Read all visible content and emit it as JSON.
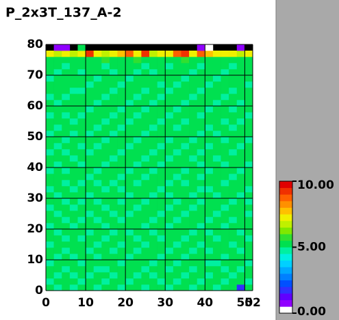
{
  "chart_data": {
    "type": "heatmap",
    "title": "P_2x3T_137_A-2",
    "xlim": [
      0,
      52
    ],
    "ylim": [
      0,
      80
    ],
    "xticks": [
      0,
      10,
      20,
      30,
      40,
      50,
      52
    ],
    "yticks": [
      0,
      10,
      20,
      30,
      40,
      50,
      60,
      70,
      80
    ],
    "grid": true,
    "zlim": [
      0,
      10
    ],
    "colorbar_ticks": [
      {
        "value": 0,
        "label": "0.00"
      },
      {
        "value": 5,
        "label": "5.00"
      },
      {
        "value": 10,
        "label": "10.00"
      }
    ],
    "colormap": [
      "#ffffff",
      "#9000ff",
      "#6000ff",
      "#3030ff",
      "#0050ff",
      "#0080ff",
      "#00a8ff",
      "#00d0ff",
      "#00f0e0",
      "#00f0a0",
      "#00e050",
      "#30e030",
      "#80e800",
      "#c0f000",
      "#f0f000",
      "#ffc000",
      "#ff9000",
      "#ff6000",
      "#f03000",
      "#e00000"
    ],
    "z": [
      [
        5.1,
        4.9,
        5.2,
        4.8,
        5.0,
        5.3,
        4.7,
        5.1,
        5.0,
        4.9,
        5.2,
        5.4,
        4.8,
        5.0,
        5.1,
        4.9,
        5.3,
        5.0,
        4.8,
        5.2,
        5.1,
        4.9,
        5.0,
        5.2,
        1.6,
        5.1
      ],
      [
        4.9,
        5.2,
        5.0,
        5.1,
        4.7,
        5.0,
        5.2,
        4.9,
        5.3,
        5.0,
        4.8,
        5.1,
        5.0,
        5.2,
        4.9,
        5.1,
        4.8,
        5.0,
        5.2,
        4.9,
        5.0,
        5.3,
        4.8,
        5.1,
        5.0,
        4.9
      ],
      [
        5.2,
        4.8,
        5.1,
        4.9,
        5.3,
        4.8,
        5.0,
        5.1,
        4.9,
        5.2,
        5.0,
        4.7,
        5.1,
        4.9,
        5.0,
        5.3,
        5.0,
        4.9,
        5.1,
        5.0,
        4.8,
        5.0,
        5.2,
        4.9,
        5.1,
        5.0
      ],
      [
        5.0,
        5.1,
        4.8,
        5.2,
        5.0,
        5.1,
        4.9,
        4.8,
        5.0,
        5.1,
        5.3,
        5.0,
        4.9,
        5.1,
        5.2,
        4.8,
        5.0,
        5.1,
        4.9,
        5.3,
        5.0,
        5.1,
        4.9,
        5.0,
        4.8,
        5.2
      ],
      [
        4.8,
        5.0,
        5.3,
        5.0,
        4.9,
        5.0,
        5.2,
        5.0,
        5.1,
        4.8,
        5.0,
        5.2,
        5.0,
        4.8,
        5.0,
        5.1,
        4.9,
        5.2,
        5.0,
        5.1,
        4.9,
        4.8,
        5.1,
        5.0,
        5.2,
        4.9
      ],
      [
        5.1,
        4.9,
        5.0,
        4.8,
        5.1,
        5.2,
        4.9,
        5.3,
        5.0,
        5.0,
        4.9,
        5.1,
        5.2,
        5.0,
        4.8,
        5.0,
        5.2,
        4.9,
        5.1,
        5.0,
        5.2,
        5.0,
        4.9,
        5.3,
        5.0,
        5.1
      ],
      [
        5.0,
        5.2,
        4.9,
        5.1,
        5.0,
        4.8,
        5.1,
        5.0,
        4.8,
        5.2,
        5.1,
        4.9,
        5.0,
        5.3,
        5.1,
        4.9,
        5.0,
        5.0,
        4.8,
        5.1,
        4.9,
        5.2,
        5.0,
        5.1,
        4.9,
        5.0
      ],
      [
        4.9,
        5.0,
        5.1,
        5.0,
        5.2,
        5.0,
        4.8,
        5.1,
        5.2,
        4.9,
        5.0,
        5.0,
        4.8,
        5.1,
        5.0,
        5.2,
        4.9,
        5.1,
        5.0,
        4.8,
        5.1,
        5.0,
        5.3,
        4.9,
        5.0,
        5.2
      ],
      [
        5.2,
        5.1,
        4.8,
        5.0,
        4.9,
        5.1,
        5.0,
        4.9,
        5.1,
        5.0,
        5.2,
        4.8,
        5.1,
        5.0,
        4.9,
        5.1,
        5.0,
        4.8,
        5.2,
        5.0,
        5.0,
        4.9,
        5.1,
        5.0,
        5.1,
        4.8
      ],
      [
        5.0,
        4.8,
        5.0,
        5.2,
        5.1,
        4.9,
        5.2,
        5.0,
        4.8,
        5.1,
        4.9,
        5.0,
        5.2,
        4.9,
        5.1,
        5.0,
        5.3,
        5.0,
        4.9,
        5.1,
        4.8,
        5.1,
        5.0,
        5.2,
        4.9,
        5.0
      ],
      [
        4.9,
        5.1,
        5.2,
        4.9,
        5.0,
        5.0,
        5.1,
        4.8,
        5.0,
        5.3,
        5.0,
        5.1,
        4.9,
        5.0,
        5.2,
        4.8,
        5.0,
        5.1,
        5.0,
        4.9,
        5.2,
        5.0,
        4.8,
        5.0,
        5.1,
        5.3
      ],
      [
        5.1,
        5.0,
        4.9,
        5.0,
        4.8,
        5.2,
        4.9,
        5.1,
        5.2,
        4.9,
        5.1,
        5.0,
        5.0,
        4.8,
        5.0,
        5.1,
        4.9,
        5.2,
        5.1,
        5.0,
        4.9,
        5.1,
        5.0,
        4.9,
        5.0,
        5.1
      ],
      [
        5.0,
        4.9,
        5.1,
        5.1,
        5.2,
        4.9,
        5.0,
        5.0,
        4.9,
        5.0,
        4.8,
        5.2,
        5.1,
        5.0,
        4.9,
        5.0,
        5.1,
        4.9,
        5.0,
        5.2,
        5.0,
        4.8,
        5.1,
        5.0,
        5.2,
        4.9
      ],
      [
        4.8,
        5.1,
        5.0,
        4.9,
        5.0,
        5.1,
        5.2,
        4.9,
        5.1,
        5.0,
        5.1,
        4.9,
        5.0,
        5.2,
        5.0,
        4.9,
        5.0,
        5.1,
        4.8,
        5.0,
        5.1,
        5.2,
        4.9,
        5.1,
        5.0,
        5.0
      ],
      [
        5.2,
        5.0,
        4.8,
        5.1,
        4.9,
        5.0,
        4.9,
        5.2,
        5.0,
        4.8,
        5.0,
        5.1,
        4.9,
        5.0,
        5.1,
        5.2,
        4.8,
        5.0,
        5.1,
        4.9,
        5.0,
        5.0,
        5.1,
        4.8,
        5.1,
        4.9
      ],
      [
        5.0,
        4.9,
        5.2,
        5.0,
        5.1,
        4.8,
        5.0,
        5.0,
        5.1,
        5.2,
        4.9,
        5.0,
        5.1,
        4.9,
        5.0,
        4.8,
        5.1,
        5.0,
        4.9,
        5.2,
        5.1,
        4.9,
        5.0,
        5.1,
        4.9,
        5.2
      ],
      [
        4.9,
        5.1,
        5.0,
        4.8,
        5.0,
        5.2,
        5.1,
        4.9,
        5.0,
        4.9,
        5.1,
        5.2,
        5.0,
        5.1,
        4.8,
        5.0,
        5.0,
        5.2,
        5.0,
        4.9,
        4.8,
        5.1,
        5.2,
        5.0,
        5.0,
        4.9
      ],
      [
        5.1,
        5.0,
        4.9,
        5.2,
        4.9,
        5.0,
        4.8,
        5.1,
        4.9,
        5.1,
        5.0,
        4.9,
        5.2,
        5.0,
        5.1,
        4.9,
        5.0,
        4.8,
        5.1,
        5.0,
        5.2,
        5.0,
        4.9,
        5.1,
        5.0,
        5.0
      ],
      [
        5.0,
        5.2,
        5.1,
        5.0,
        5.0,
        4.9,
        5.1,
        5.0,
        5.2,
        4.8,
        5.0,
        5.1,
        4.9,
        5.0,
        5.2,
        5.0,
        4.9,
        5.1,
        5.0,
        4.9,
        5.0,
        5.1,
        5.0,
        4.8,
        5.1,
        5.2
      ],
      [
        4.8,
        5.0,
        4.9,
        5.1,
        5.2,
        5.0,
        4.9,
        5.2,
        5.0,
        5.0,
        4.9,
        5.0,
        5.1,
        4.8,
        5.0,
        5.1,
        5.2,
        4.9,
        5.0,
        5.1,
        4.9,
        5.0,
        5.2,
        5.0,
        4.9,
        5.0
      ],
      [
        5.1,
        4.9,
        5.0,
        5.0,
        4.8,
        5.1,
        5.0,
        4.9,
        5.1,
        5.2,
        5.0,
        4.8,
        5.0,
        5.1,
        4.9,
        5.0,
        5.1,
        5.0,
        5.2,
        4.9,
        5.0,
        5.1,
        4.9,
        5.0,
        5.1,
        4.9
      ],
      [
        5.0,
        5.1,
        5.2,
        4.9,
        5.0,
        5.0,
        5.1,
        5.0,
        4.8,
        5.0,
        5.1,
        5.0,
        4.9,
        5.2,
        5.0,
        4.9,
        5.0,
        5.1,
        4.9,
        5.0,
        5.2,
        4.9,
        5.0,
        5.1,
        5.0,
        5.1
      ],
      [
        4.9,
        5.0,
        4.8,
        5.1,
        5.1,
        4.9,
        5.0,
        5.2,
        5.0,
        4.9,
        5.0,
        5.1,
        5.0,
        4.9,
        5.1,
        5.2,
        4.9,
        5.0,
        5.1,
        4.8,
        5.0,
        5.0,
        5.1,
        4.9,
        5.2,
        5.0
      ],
      [
        5.2,
        4.9,
        5.0,
        5.0,
        4.9,
        5.2,
        4.8,
        5.0,
        5.1,
        5.0,
        4.9,
        5.0,
        5.2,
        5.0,
        4.8,
        5.0,
        5.1,
        4.9,
        5.0,
        5.1,
        4.9,
        5.2,
        5.0,
        5.0,
        4.9,
        5.1
      ],
      [
        5.0,
        5.1,
        4.9,
        5.2,
        5.0,
        5.0,
        5.1,
        4.9,
        5.0,
        5.1,
        5.2,
        4.9,
        5.0,
        5.1,
        5.0,
        4.9,
        5.0,
        5.2,
        4.8,
        5.0,
        5.1,
        5.0,
        4.9,
        5.2,
        5.0,
        4.9
      ],
      [
        4.9,
        5.0,
        5.1,
        4.9,
        5.1,
        4.8,
        5.0,
        5.1,
        4.9,
        5.0,
        5.0,
        5.1,
        4.8,
        5.0,
        5.1,
        5.0,
        5.2,
        5.0,
        5.1,
        4.9,
        5.0,
        4.9,
        5.1,
        5.0,
        5.1,
        5.0
      ],
      [
        5.1,
        4.8,
        5.0,
        5.0,
        5.2,
        5.1,
        4.9,
        5.0,
        5.2,
        4.9,
        5.1,
        5.0,
        5.1,
        4.9,
        5.0,
        5.1,
        4.9,
        5.0,
        5.0,
        5.2,
        4.8,
        5.1,
        5.0,
        4.9,
        5.0,
        5.2
      ],
      [
        5.0,
        5.1,
        5.2,
        4.9,
        5.0,
        5.0,
        5.1,
        4.8,
        5.0,
        5.1,
        4.9,
        5.2,
        5.0,
        5.0,
        4.9,
        5.0,
        5.1,
        4.9,
        5.2,
        5.0,
        5.1,
        5.0,
        4.9,
        5.1,
        4.9,
        5.0
      ],
      [
        4.8,
        5.0,
        4.9,
        5.1,
        4.9,
        5.2,
        5.0,
        5.1,
        4.9,
        5.0,
        5.0,
        4.9,
        5.1,
        5.2,
        5.0,
        4.8,
        5.0,
        5.1,
        5.0,
        4.9,
        5.0,
        5.2,
        5.1,
        5.0,
        5.0,
        4.9
      ],
      [
        5.2,
        5.0,
        5.1,
        5.0,
        5.1,
        4.9,
        5.0,
        5.0,
        5.1,
        4.8,
        5.1,
        5.0,
        4.9,
        5.0,
        5.1,
        5.0,
        4.9,
        5.0,
        5.1,
        5.0,
        4.9,
        5.0,
        5.0,
        4.9,
        5.2,
        5.1
      ],
      [
        5.0,
        4.9,
        5.0,
        5.2,
        5.0,
        5.0,
        4.8,
        5.1,
        5.0,
        5.2,
        4.9,
        5.1,
        5.0,
        4.9,
        5.2,
        5.1,
        5.0,
        4.8,
        5.0,
        5.1,
        5.2,
        4.9,
        5.1,
        5.0,
        4.9,
        5.0
      ],
      [
        4.9,
        5.1,
        4.8,
        5.0,
        5.1,
        5.1,
        5.0,
        4.9,
        5.2,
        5.0,
        5.0,
        4.9,
        5.1,
        5.0,
        4.9,
        5.0,
        5.2,
        5.1,
        4.9,
        5.0,
        5.0,
        5.1,
        4.9,
        5.2,
        5.0,
        5.1
      ],
      [
        5.1,
        5.0,
        5.2,
        4.9,
        4.9,
        5.0,
        5.2,
        5.0,
        4.9,
        5.1,
        5.1,
        5.0,
        4.9,
        5.2,
        5.0,
        4.9,
        5.0,
        5.0,
        5.2,
        4.8,
        5.1,
        5.0,
        5.0,
        4.9,
        5.1,
        5.0
      ],
      [
        5.0,
        5.2,
        5.0,
        5.1,
        5.0,
        4.8,
        5.0,
        5.1,
        5.0,
        4.9,
        5.0,
        5.2,
        5.1,
        5.0,
        4.8,
        5.1,
        4.9,
        5.2,
        5.0,
        5.1,
        4.9,
        5.0,
        5.2,
        5.1,
        5.0,
        4.9
      ],
      [
        4.9,
        5.0,
        5.1,
        5.0,
        5.2,
        5.1,
        4.9,
        5.0,
        5.1,
        5.0,
        4.9,
        5.0,
        5.0,
        5.1,
        5.2,
        5.0,
        5.1,
        4.9,
        5.0,
        5.0,
        5.1,
        4.9,
        5.0,
        5.0,
        5.2,
        5.0
      ],
      [
        5.1,
        4.9,
        5.0,
        5.2,
        4.9,
        5.0,
        5.1,
        5.2,
        4.9,
        5.1,
        5.0,
        4.9,
        5.2,
        4.9,
        5.0,
        5.1,
        5.0,
        5.0,
        4.9,
        5.2,
        5.0,
        5.1,
        4.9,
        5.0,
        5.0,
        5.1
      ],
      [
        5.0,
        5.1,
        4.9,
        5.0,
        5.1,
        5.2,
        5.0,
        4.9,
        5.0,
        5.2,
        5.1,
        5.0,
        4.9,
        5.0,
        5.1,
        4.9,
        5.2,
        5.0,
        5.1,
        4.9,
        5.0,
        5.2,
        5.1,
        4.9,
        5.1,
        5.0
      ],
      [
        5.3,
        5.2,
        5.4,
        5.1,
        5.3,
        5.0,
        5.2,
        5.5,
        5.1,
        5.3,
        5.2,
        5.6,
        5.3,
        5.1,
        5.4,
        5.2,
        5.3,
        5.5,
        5.2,
        5.1,
        5.3,
        5.4,
        5.2,
        5.3,
        5.1,
        5.4
      ],
      [
        7.2,
        6.8,
        7.4,
        6.6,
        7.0,
        9.2,
        7.1,
        6.9,
        7.3,
        7.6,
        8.7,
        7.0,
        9.4,
        6.8,
        7.2,
        7.1,
        8.8,
        9.3,
        7.0,
        8.6,
        7.5,
        7.2,
        7.1,
        7.4,
        6.9,
        7.3
      ],
      [
        null,
        0.7,
        0.8,
        null,
        5.3,
        null,
        null,
        null,
        null,
        null,
        null,
        null,
        null,
        null,
        null,
        null,
        null,
        null,
        null,
        0.9,
        0.2,
        null,
        null,
        null,
        0.8,
        null
      ]
    ]
  }
}
